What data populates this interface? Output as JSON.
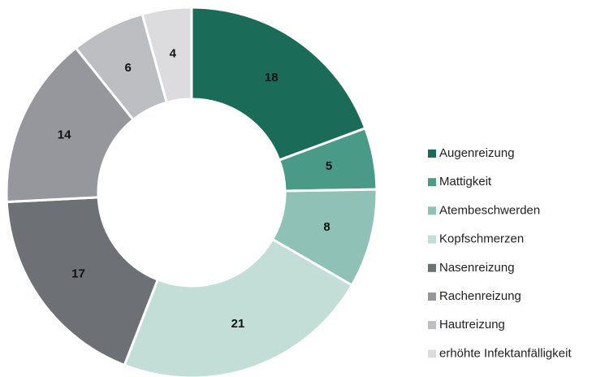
{
  "chart_data": {
    "type": "pie",
    "categories": [
      "Augenreizung",
      "Mattigkeit",
      "Atembeschwerden",
      "Kopfschmerzen",
      "Nasenreizung",
      "Rachenreizung",
      "Hautreizung",
      "erhöhte Infektanfälligkeit"
    ],
    "values": [
      18,
      5,
      8,
      21,
      17,
      14,
      6,
      4
    ],
    "colors": [
      "#1a6b58",
      "#4a9a88",
      "#8fc1b7",
      "#c3ddd7",
      "#6d7075",
      "#95979c",
      "#bcbec1",
      "#dcdcde"
    ],
    "legend": "right"
  }
}
